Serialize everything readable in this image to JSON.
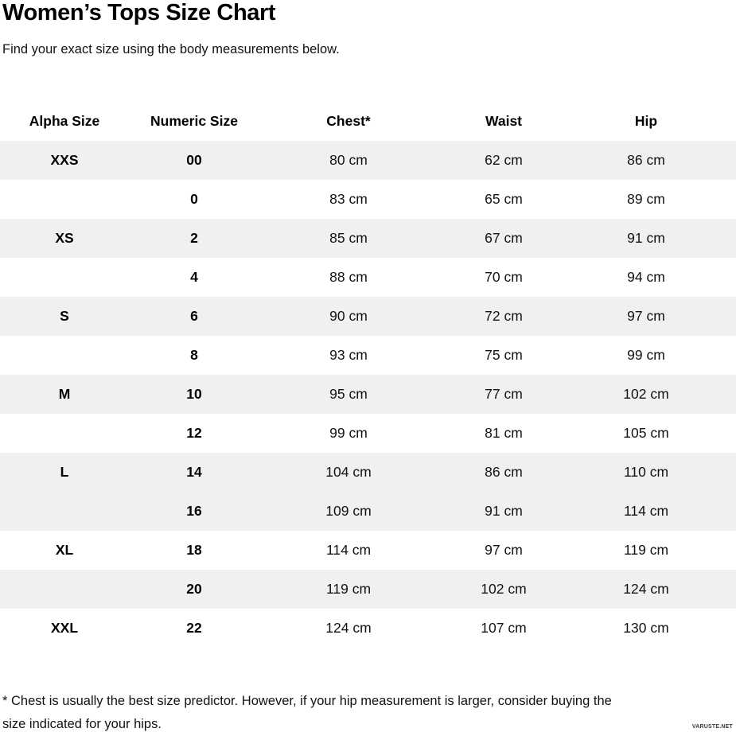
{
  "page": {
    "title": "Women’s Tops Size Chart",
    "subtitle": "Find your exact size using the body measurements below.",
    "footnote_line1": "* Chest is usually the best size predictor. However, if your hip measurement is larger, consider buying the",
    "footnote_line2": "size indicated for your hips.",
    "watermark": "VARUSTE.NET"
  },
  "colors": {
    "row_shade": "#f0f0f0",
    "text": "#121212"
  },
  "table": {
    "headers": [
      "Alpha Size",
      "Numeric Size",
      "Chest*",
      "Waist",
      "Hip"
    ],
    "rows": [
      {
        "alpha": "XXS",
        "numeric": "00",
        "chest": "80 cm",
        "waist": "62 cm",
        "hip": "86 cm",
        "shaded": true
      },
      {
        "alpha": "",
        "numeric": "0",
        "chest": "83 cm",
        "waist": "65 cm",
        "hip": "89 cm",
        "shaded": false
      },
      {
        "alpha": "XS",
        "numeric": "2",
        "chest": "85 cm",
        "waist": "67 cm",
        "hip": "91 cm",
        "shaded": true
      },
      {
        "alpha": "",
        "numeric": "4",
        "chest": "88 cm",
        "waist": "70 cm",
        "hip": "94 cm",
        "shaded": false
      },
      {
        "alpha": "S",
        "numeric": "6",
        "chest": "90 cm",
        "waist": "72 cm",
        "hip": "97 cm",
        "shaded": true
      },
      {
        "alpha": "",
        "numeric": "8",
        "chest": "93 cm",
        "waist": "75 cm",
        "hip": "99 cm",
        "shaded": false
      },
      {
        "alpha": "M",
        "numeric": "10",
        "chest": "95 cm",
        "waist": "77 cm",
        "hip": "102 cm",
        "shaded": true
      },
      {
        "alpha": "",
        "numeric": "12",
        "chest": "99 cm",
        "waist": "81 cm",
        "hip": "105 cm",
        "shaded": false
      },
      {
        "alpha": "L",
        "numeric": "14",
        "chest": "104 cm",
        "waist": "86 cm",
        "hip": "110 cm",
        "shaded": true
      },
      {
        "alpha": "",
        "numeric": "16",
        "chest": "109 cm",
        "waist": "91 cm",
        "hip": "114 cm",
        "shaded": true
      },
      {
        "alpha": "XL",
        "numeric": "18",
        "chest": "114 cm",
        "waist": "97 cm",
        "hip": "119 cm",
        "shaded": false
      },
      {
        "alpha": "",
        "numeric": "20",
        "chest": "119 cm",
        "waist": "102 cm",
        "hip": "124 cm",
        "shaded": true
      },
      {
        "alpha": "XXL",
        "numeric": "22",
        "chest": "124 cm",
        "waist": "107 cm",
        "hip": "130 cm",
        "shaded": false
      }
    ]
  }
}
